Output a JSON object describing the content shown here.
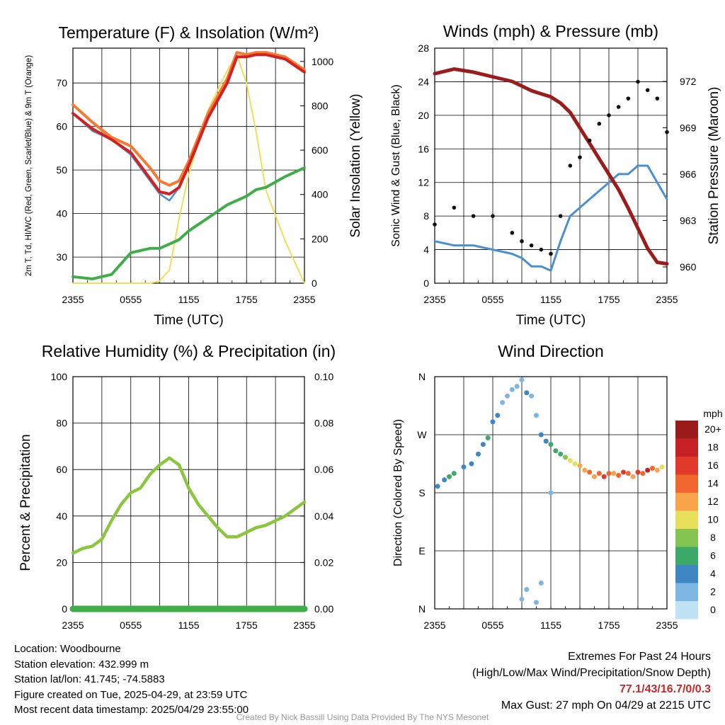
{
  "chart_data": [
    {
      "type": "line",
      "title": "Temperature (F) & Insolation (W/m²)",
      "xlabel": "Time (UTC)",
      "ylabel_left": "2m T, Td, HI/WC (Red, Green, Scarlet/Blue) & 9m T (Orange)",
      "ylabel_right": "Solar Insolation (Yellow)",
      "x_ticks": [
        "2355",
        "0555",
        "1155",
        "1755",
        "2355"
      ],
      "ylim_left": [
        24,
        78
      ],
      "yticks_left": [
        30,
        40,
        50,
        60,
        70
      ],
      "ylim_right": [
        0,
        1060
      ],
      "yticks_right": [
        0,
        200,
        400,
        600,
        800,
        1000
      ],
      "x_hours": [
        0,
        2,
        4,
        6,
        8,
        9,
        10,
        11,
        12,
        14,
        16,
        17,
        18,
        19,
        20,
        22,
        24
      ],
      "series": [
        {
          "name": "2m T",
          "color": "#d32020",
          "axis": "left",
          "values": [
            63,
            59.5,
            57,
            54,
            48,
            45,
            44.5,
            46,
            51,
            62,
            70,
            76,
            76,
            76.5,
            76.5,
            75.5,
            72.5
          ]
        },
        {
          "name": "9m T",
          "color": "#f47c30",
          "axis": "left",
          "values": [
            65,
            61,
            57.5,
            55.5,
            50.5,
            47.5,
            46.5,
            47.5,
            52,
            63,
            71,
            77,
            76.5,
            77,
            77,
            76,
            73
          ]
        },
        {
          "name": "Td",
          "color": "#3fae49",
          "axis": "left",
          "values": [
            25.5,
            25,
            26,
            31,
            32,
            32,
            33,
            34,
            36,
            39,
            42,
            43,
            44,
            45.5,
            46,
            48.5,
            50.5
          ]
        },
        {
          "name": "HI/WC",
          "color": "#4a90d0",
          "axis": "left",
          "values": [
            63,
            59,
            57,
            53.5,
            47.5,
            44.5,
            43,
            46,
            51,
            62,
            70,
            76,
            76,
            76.5,
            76.5,
            75.5,
            72.5
          ]
        },
        {
          "name": "Solar Insolation",
          "color": "#f2dd5a",
          "axis": "right",
          "values": [
            0,
            0,
            0,
            0,
            0,
            10,
            60,
            290,
            490,
            780,
            960,
            1030,
            900,
            680,
            420,
            190,
            0
          ]
        }
      ]
    },
    {
      "type": "scatter",
      "title": "Winds (mph) & Pressure (mb)",
      "xlabel": "Time (UTC)",
      "ylabel_left": "Sonic Wind & Gust (Blue, Black)",
      "ylabel_right": "Station Pressure (Maroon)",
      "x_ticks": [
        "2355",
        "0555",
        "1155",
        "1755",
        "2355"
      ],
      "ylim_left": [
        0,
        28
      ],
      "yticks_left": [
        0,
        4,
        8,
        12,
        16,
        20,
        24,
        28
      ],
      "yticks_right": [
        960,
        963,
        966,
        969,
        972
      ],
      "x_hours": [
        0,
        2,
        4,
        6,
        8,
        9,
        10,
        11,
        12,
        13,
        14,
        15,
        16,
        17,
        18,
        19,
        20,
        21,
        22,
        23,
        24
      ],
      "series": [
        {
          "name": "Sonic Wind",
          "color": "#4a90d0",
          "type": "line",
          "values": [
            5,
            4.5,
            4.5,
            4,
            3.5,
            3,
            2,
            2,
            1.5,
            5,
            8,
            9,
            10,
            11,
            12,
            13,
            13,
            14,
            14,
            12,
            10
          ]
        },
        {
          "name": "Gust",
          "color": "#111111",
          "type": "scatter",
          "values": [
            7,
            9,
            8,
            8,
            6,
            5,
            4.5,
            4,
            3.5,
            8,
            14,
            15,
            17,
            19,
            20,
            21,
            22,
            24,
            23,
            22,
            18
          ]
        },
        {
          "name": "Station Pressure",
          "color": "#9b1c1c",
          "type": "line",
          "axis": "right",
          "values": [
            972.5,
            972.8,
            972.6,
            972.3,
            972.0,
            971.7,
            971.4,
            971.2,
            971.0,
            970.6,
            970.0,
            969.0,
            968.0,
            967.0,
            966.0,
            965.0,
            963.8,
            962.5,
            961.2,
            960.3,
            960.2
          ]
        }
      ]
    },
    {
      "type": "line",
      "title": "Relative Humidity (%) & Precipitation (in)",
      "xlabel": "",
      "ylabel_left": "Percent & Precipitation",
      "x_ticks": [
        "2355",
        "0555",
        "1155",
        "1755",
        "2355"
      ],
      "ylim_left": [
        0,
        100
      ],
      "yticks_left": [
        0,
        20,
        40,
        60,
        80,
        100
      ],
      "ylim_right": [
        0,
        0.1
      ],
      "yticks_right": [
        "0.00",
        "0.02",
        "0.04",
        "0.06",
        "0.08",
        "0.10"
      ],
      "x_hours": [
        0,
        1,
        2,
        3,
        4,
        5,
        6,
        7,
        8,
        9,
        10,
        11,
        12,
        13,
        14,
        15,
        16,
        17,
        18,
        19,
        20,
        21,
        22,
        23,
        24
      ],
      "series": [
        {
          "name": "Relative Humidity",
          "color": "#8cc63f",
          "values": [
            24,
            26,
            27,
            30,
            38,
            45,
            50,
            52,
            58,
            62,
            65,
            62,
            52,
            45,
            40,
            35,
            31,
            31,
            33,
            35,
            36,
            38,
            40,
            43,
            46
          ]
        },
        {
          "name": "Precipitation",
          "color": "#3fae49",
          "values": [
            0,
            0,
            0,
            0,
            0,
            0,
            0,
            0,
            0,
            0,
            0,
            0,
            0,
            0,
            0,
            0,
            0,
            0,
            0,
            0,
            0,
            0,
            0,
            0,
            0
          ]
        }
      ]
    },
    {
      "type": "scatter",
      "title": "Wind Direction",
      "xlabel": "",
      "ylabel_left": "Direction (Colored By Speed)",
      "x_ticks": [
        "2355",
        "0555",
        "1155",
        "1755",
        "2355"
      ],
      "y_ticks": [
        "N",
        "E",
        "S",
        "W",
        "N"
      ],
      "ylim_left": [
        0,
        360
      ],
      "colorbar": {
        "title": "mph",
        "labels": [
          "20+",
          "18",
          "16",
          "14",
          "12",
          "10",
          "8",
          "6",
          "4",
          "2",
          "0"
        ],
        "colors": [
          "#9b1b1b",
          "#c42026",
          "#e23a2a",
          "#f0662e",
          "#f9a44a",
          "#e8e05a",
          "#86c451",
          "#3daa6a",
          "#3f86c5",
          "#7db6e3",
          "#bfe2f5"
        ]
      },
      "points": [
        [
          0.3,
          190,
          4
        ],
        [
          1,
          200,
          4
        ],
        [
          1.5,
          205,
          6
        ],
        [
          2,
          210,
          6
        ],
        [
          3,
          220,
          4
        ],
        [
          3.8,
          225,
          4
        ],
        [
          4.5,
          240,
          4
        ],
        [
          5,
          255,
          4
        ],
        [
          5.5,
          265,
          6
        ],
        [
          6,
          290,
          4
        ],
        [
          6.5,
          300,
          4
        ],
        [
          7,
          320,
          2
        ],
        [
          7.5,
          330,
          2
        ],
        [
          8,
          340,
          2
        ],
        [
          8.5,
          345,
          2
        ],
        [
          9,
          355,
          2
        ],
        [
          9.5,
          335,
          4
        ],
        [
          10,
          330,
          2
        ],
        [
          10.5,
          300,
          2
        ],
        [
          11,
          270,
          4
        ],
        [
          11.5,
          260,
          4
        ],
        [
          12,
          255,
          6
        ],
        [
          12.5,
          245,
          6
        ],
        [
          13,
          240,
          6
        ],
        [
          13.5,
          235,
          8
        ],
        [
          14,
          230,
          10
        ],
        [
          14.5,
          225,
          10
        ],
        [
          15,
          222,
          12
        ],
        [
          15.5,
          215,
          12
        ],
        [
          16,
          212,
          14
        ],
        [
          16.5,
          205,
          12
        ],
        [
          17,
          210,
          14
        ],
        [
          17.5,
          205,
          16
        ],
        [
          18,
          210,
          14
        ],
        [
          18.5,
          210,
          12
        ],
        [
          19,
          207,
          14
        ],
        [
          19.5,
          212,
          16
        ],
        [
          20,
          210,
          14
        ],
        [
          20.5,
          205,
          12
        ],
        [
          21,
          212,
          16
        ],
        [
          21.5,
          210,
          14
        ],
        [
          22,
          215,
          18
        ],
        [
          22.5,
          218,
          14
        ],
        [
          23,
          215,
          12
        ],
        [
          23.5,
          220,
          10
        ],
        [
          9,
          15,
          2
        ],
        [
          9.5,
          30,
          2
        ],
        [
          10.5,
          10,
          2
        ],
        [
          11,
          40,
          2
        ],
        [
          12,
          180,
          2
        ]
      ]
    }
  ],
  "info": {
    "location": "Location: Woodbourne",
    "elevation": "Station elevation: 432.999 m",
    "latlon": "Station lat/lon: 41.745; -74.5883",
    "created": "Figure created on Tue, 2025-04-29, at 23:59 UTC",
    "recent": "Most recent data timestamp: 2025/04/29 23:55:00",
    "extremes_title": "Extremes For Past 24 Hours",
    "extremes_legend": "(High/Low/Max Wind/Precipitation/Snow Depth)",
    "extremes_values": "77.1/43/16.7/0/0.3",
    "max_gust": "Max Gust: 27 mph On 04/29 at 2215 UTC"
  },
  "credit": "Created By Nick Bassill Using Data Provided By The NYS Mesonet"
}
